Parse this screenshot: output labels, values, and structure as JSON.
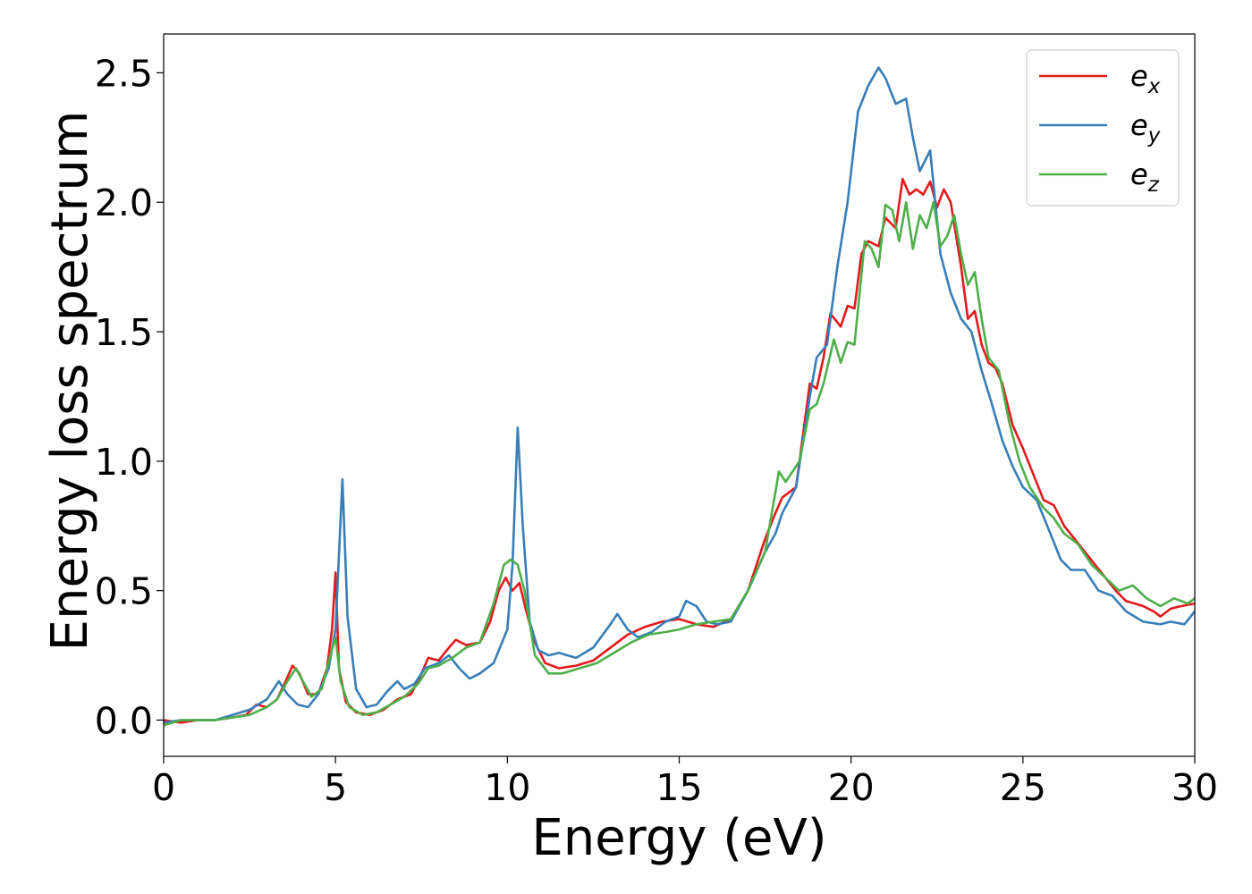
{
  "chart_data": {
    "type": "line",
    "title": "",
    "xlabel": "Energy (eV)",
    "ylabel": "Energy loss spectrum",
    "xlim": [
      0,
      30
    ],
    "ylim": [
      -0.14,
      2.65
    ],
    "xticks": [
      0,
      5,
      10,
      15,
      20,
      25,
      30
    ],
    "xtick_labels": [
      "0",
      "5",
      "10",
      "15",
      "20",
      "25",
      "30"
    ],
    "yticks": [
      0.0,
      0.5,
      1.0,
      1.5,
      2.0,
      2.5
    ],
    "ytick_labels": [
      "0.0",
      "0.5",
      "1.0",
      "1.5",
      "2.0",
      "2.5"
    ],
    "grid": false,
    "legend_position": "top-right",
    "series": [
      {
        "name": "e_x",
        "label_base": "e",
        "label_sub": "x",
        "color": "#e41a1c",
        "points": [
          [
            0,
            0.0
          ],
          [
            0.5,
            -0.01
          ],
          [
            1,
            0.0
          ],
          [
            1.5,
            0.0
          ],
          [
            2,
            0.01
          ],
          [
            2.4,
            0.02
          ],
          [
            2.7,
            0.06
          ],
          [
            3,
            0.05
          ],
          [
            3.3,
            0.08
          ],
          [
            3.55,
            0.15
          ],
          [
            3.75,
            0.21
          ],
          [
            3.95,
            0.18
          ],
          [
            4.2,
            0.1
          ],
          [
            4.5,
            0.1
          ],
          [
            4.75,
            0.2
          ],
          [
            4.9,
            0.35
          ],
          [
            5.0,
            0.57
          ],
          [
            5.1,
            0.2
          ],
          [
            5.3,
            0.07
          ],
          [
            5.6,
            0.03
          ],
          [
            6.0,
            0.02
          ],
          [
            6.4,
            0.04
          ],
          [
            6.8,
            0.08
          ],
          [
            7.2,
            0.1
          ],
          [
            7.5,
            0.18
          ],
          [
            7.7,
            0.24
          ],
          [
            8.0,
            0.23
          ],
          [
            8.3,
            0.28
          ],
          [
            8.5,
            0.31
          ],
          [
            8.8,
            0.29
          ],
          [
            9.2,
            0.3
          ],
          [
            9.5,
            0.38
          ],
          [
            9.75,
            0.5
          ],
          [
            9.95,
            0.55
          ],
          [
            10.15,
            0.5
          ],
          [
            10.35,
            0.53
          ],
          [
            10.55,
            0.42
          ],
          [
            10.8,
            0.3
          ],
          [
            11.1,
            0.22
          ],
          [
            11.5,
            0.2
          ],
          [
            12,
            0.21
          ],
          [
            12.5,
            0.23
          ],
          [
            13.0,
            0.28
          ],
          [
            13.5,
            0.33
          ],
          [
            14.0,
            0.36
          ],
          [
            14.5,
            0.38
          ],
          [
            15.0,
            0.39
          ],
          [
            15.5,
            0.37
          ],
          [
            16.0,
            0.36
          ],
          [
            16.5,
            0.39
          ],
          [
            17.0,
            0.5
          ],
          [
            17.5,
            0.7
          ],
          [
            17.8,
            0.8
          ],
          [
            18.0,
            0.86
          ],
          [
            18.4,
            0.9
          ],
          [
            18.8,
            1.3
          ],
          [
            19.0,
            1.28
          ],
          [
            19.2,
            1.4
          ],
          [
            19.4,
            1.57
          ],
          [
            19.7,
            1.52
          ],
          [
            19.9,
            1.6
          ],
          [
            20.1,
            1.59
          ],
          [
            20.3,
            1.8
          ],
          [
            20.5,
            1.85
          ],
          [
            20.8,
            1.83
          ],
          [
            21.0,
            1.94
          ],
          [
            21.3,
            1.9
          ],
          [
            21.5,
            2.09
          ],
          [
            21.7,
            2.03
          ],
          [
            21.9,
            2.05
          ],
          [
            22.1,
            2.03
          ],
          [
            22.3,
            2.08
          ],
          [
            22.5,
            1.98
          ],
          [
            22.7,
            2.05
          ],
          [
            22.9,
            2.0
          ],
          [
            23.2,
            1.75
          ],
          [
            23.4,
            1.55
          ],
          [
            23.6,
            1.58
          ],
          [
            23.8,
            1.45
          ],
          [
            24.0,
            1.38
          ],
          [
            24.2,
            1.36
          ],
          [
            24.4,
            1.3
          ],
          [
            24.7,
            1.14
          ],
          [
            25.0,
            1.05
          ],
          [
            25.3,
            0.95
          ],
          [
            25.6,
            0.85
          ],
          [
            25.9,
            0.83
          ],
          [
            26.2,
            0.75
          ],
          [
            26.5,
            0.7
          ],
          [
            26.8,
            0.65
          ],
          [
            27.1,
            0.6
          ],
          [
            27.4,
            0.55
          ],
          [
            27.7,
            0.5
          ],
          [
            28.0,
            0.46
          ],
          [
            28.5,
            0.44
          ],
          [
            28.8,
            0.42
          ],
          [
            29.0,
            0.4
          ],
          [
            29.3,
            0.43
          ],
          [
            29.6,
            0.44
          ],
          [
            30.0,
            0.45
          ]
        ]
      },
      {
        "name": "e_y",
        "label_base": "e",
        "label_sub": "y",
        "color": "#377eb8",
        "points": [
          [
            0,
            -0.01
          ],
          [
            0.5,
            0.0
          ],
          [
            1,
            0.0
          ],
          [
            1.5,
            0.0
          ],
          [
            2,
            0.02
          ],
          [
            2.5,
            0.04
          ],
          [
            3.0,
            0.08
          ],
          [
            3.35,
            0.15
          ],
          [
            3.6,
            0.1
          ],
          [
            3.9,
            0.06
          ],
          [
            4.2,
            0.05
          ],
          [
            4.5,
            0.1
          ],
          [
            4.8,
            0.2
          ],
          [
            5.0,
            0.35
          ],
          [
            5.2,
            0.93
          ],
          [
            5.35,
            0.4
          ],
          [
            5.6,
            0.12
          ],
          [
            5.9,
            0.05
          ],
          [
            6.2,
            0.06
          ],
          [
            6.5,
            0.11
          ],
          [
            6.8,
            0.15
          ],
          [
            7.0,
            0.12
          ],
          [
            7.3,
            0.14
          ],
          [
            7.6,
            0.2
          ],
          [
            8.0,
            0.22
          ],
          [
            8.3,
            0.25
          ],
          [
            8.6,
            0.2
          ],
          [
            8.9,
            0.16
          ],
          [
            9.2,
            0.18
          ],
          [
            9.6,
            0.22
          ],
          [
            10.0,
            0.35
          ],
          [
            10.15,
            0.6
          ],
          [
            10.3,
            1.13
          ],
          [
            10.45,
            0.75
          ],
          [
            10.65,
            0.38
          ],
          [
            10.9,
            0.27
          ],
          [
            11.2,
            0.25
          ],
          [
            11.5,
            0.26
          ],
          [
            12.0,
            0.24
          ],
          [
            12.5,
            0.28
          ],
          [
            13.0,
            0.37
          ],
          [
            13.2,
            0.41
          ],
          [
            13.5,
            0.35
          ],
          [
            13.8,
            0.32
          ],
          [
            14.2,
            0.34
          ],
          [
            14.6,
            0.38
          ],
          [
            15.0,
            0.4
          ],
          [
            15.2,
            0.46
          ],
          [
            15.5,
            0.44
          ],
          [
            15.8,
            0.38
          ],
          [
            16.1,
            0.37
          ],
          [
            16.5,
            0.38
          ],
          [
            17.0,
            0.5
          ],
          [
            17.5,
            0.65
          ],
          [
            17.8,
            0.72
          ],
          [
            18.0,
            0.8
          ],
          [
            18.4,
            0.9
          ],
          [
            18.8,
            1.25
          ],
          [
            19.0,
            1.4
          ],
          [
            19.3,
            1.45
          ],
          [
            19.6,
            1.75
          ],
          [
            19.9,
            2.0
          ],
          [
            20.2,
            2.35
          ],
          [
            20.5,
            2.45
          ],
          [
            20.8,
            2.52
          ],
          [
            21.0,
            2.48
          ],
          [
            21.3,
            2.38
          ],
          [
            21.6,
            2.4
          ],
          [
            21.8,
            2.25
          ],
          [
            22.0,
            2.12
          ],
          [
            22.3,
            2.2
          ],
          [
            22.6,
            1.8
          ],
          [
            22.9,
            1.65
          ],
          [
            23.2,
            1.55
          ],
          [
            23.5,
            1.5
          ],
          [
            23.8,
            1.35
          ],
          [
            24.1,
            1.22
          ],
          [
            24.4,
            1.08
          ],
          [
            24.7,
            0.98
          ],
          [
            25.0,
            0.9
          ],
          [
            25.4,
            0.85
          ],
          [
            25.8,
            0.72
          ],
          [
            26.1,
            0.62
          ],
          [
            26.4,
            0.58
          ],
          [
            26.8,
            0.58
          ],
          [
            27.2,
            0.5
          ],
          [
            27.6,
            0.48
          ],
          [
            28.0,
            0.42
          ],
          [
            28.5,
            0.38
          ],
          [
            29.0,
            0.37
          ],
          [
            29.3,
            0.38
          ],
          [
            29.7,
            0.37
          ],
          [
            30.0,
            0.42
          ]
        ]
      },
      {
        "name": "e_z",
        "label_base": "e",
        "label_sub": "z",
        "color": "#4daf4a",
        "points": [
          [
            0,
            -0.02
          ],
          [
            0.5,
            0.0
          ],
          [
            1,
            0.0
          ],
          [
            1.5,
            0.0
          ],
          [
            2,
            0.01
          ],
          [
            2.5,
            0.02
          ],
          [
            3.0,
            0.05
          ],
          [
            3.3,
            0.08
          ],
          [
            3.6,
            0.15
          ],
          [
            3.85,
            0.2
          ],
          [
            4.05,
            0.15
          ],
          [
            4.3,
            0.09
          ],
          [
            4.6,
            0.12
          ],
          [
            4.85,
            0.25
          ],
          [
            5.0,
            0.32
          ],
          [
            5.15,
            0.15
          ],
          [
            5.4,
            0.05
          ],
          [
            5.8,
            0.02
          ],
          [
            6.2,
            0.03
          ],
          [
            6.6,
            0.06
          ],
          [
            7.0,
            0.09
          ],
          [
            7.4,
            0.14
          ],
          [
            7.7,
            0.2
          ],
          [
            8.0,
            0.21
          ],
          [
            8.4,
            0.24
          ],
          [
            8.8,
            0.28
          ],
          [
            9.2,
            0.3
          ],
          [
            9.6,
            0.45
          ],
          [
            9.9,
            0.6
          ],
          [
            10.1,
            0.62
          ],
          [
            10.3,
            0.6
          ],
          [
            10.5,
            0.5
          ],
          [
            10.8,
            0.25
          ],
          [
            11.2,
            0.18
          ],
          [
            11.6,
            0.18
          ],
          [
            12.1,
            0.2
          ],
          [
            12.6,
            0.22
          ],
          [
            13.1,
            0.26
          ],
          [
            13.6,
            0.3
          ],
          [
            14.1,
            0.33
          ],
          [
            14.6,
            0.34
          ],
          [
            15.0,
            0.35
          ],
          [
            15.5,
            0.37
          ],
          [
            16.0,
            0.38
          ],
          [
            16.5,
            0.39
          ],
          [
            17.0,
            0.5
          ],
          [
            17.5,
            0.65
          ],
          [
            17.9,
            0.96
          ],
          [
            18.1,
            0.92
          ],
          [
            18.5,
            1.0
          ],
          [
            18.8,
            1.2
          ],
          [
            19.0,
            1.22
          ],
          [
            19.2,
            1.3
          ],
          [
            19.5,
            1.47
          ],
          [
            19.7,
            1.38
          ],
          [
            19.9,
            1.46
          ],
          [
            20.1,
            1.45
          ],
          [
            20.4,
            1.85
          ],
          [
            20.6,
            1.82
          ],
          [
            20.8,
            1.75
          ],
          [
            21.0,
            1.99
          ],
          [
            21.2,
            1.97
          ],
          [
            21.4,
            1.85
          ],
          [
            21.6,
            2.0
          ],
          [
            21.8,
            1.82
          ],
          [
            22.0,
            1.95
          ],
          [
            22.2,
            1.9
          ],
          [
            22.4,
            2.0
          ],
          [
            22.6,
            1.83
          ],
          [
            22.8,
            1.87
          ],
          [
            23.0,
            1.95
          ],
          [
            23.2,
            1.8
          ],
          [
            23.4,
            1.68
          ],
          [
            23.6,
            1.73
          ],
          [
            23.8,
            1.55
          ],
          [
            24.0,
            1.4
          ],
          [
            24.3,
            1.35
          ],
          [
            24.6,
            1.15
          ],
          [
            24.9,
            1.0
          ],
          [
            25.2,
            0.9
          ],
          [
            25.6,
            0.82
          ],
          [
            25.9,
            0.78
          ],
          [
            26.2,
            0.72
          ],
          [
            26.6,
            0.68
          ],
          [
            27.0,
            0.6
          ],
          [
            27.4,
            0.55
          ],
          [
            27.8,
            0.5
          ],
          [
            28.2,
            0.52
          ],
          [
            28.6,
            0.47
          ],
          [
            29.0,
            0.44
          ],
          [
            29.4,
            0.47
          ],
          [
            29.8,
            0.45
          ],
          [
            30.0,
            0.47
          ]
        ]
      }
    ]
  }
}
